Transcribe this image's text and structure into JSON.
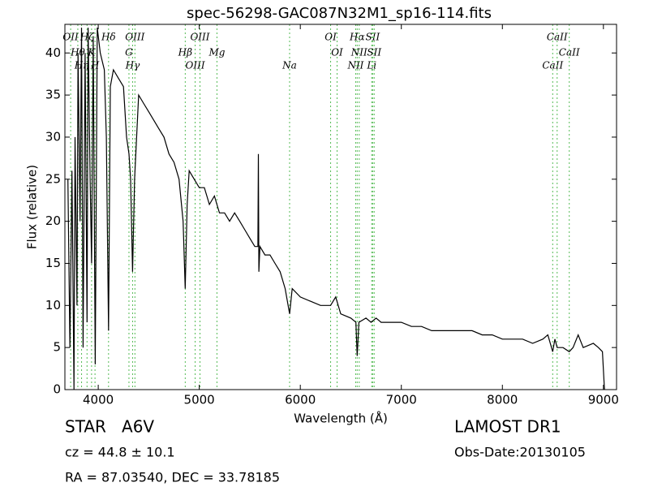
{
  "chart_data": {
    "type": "line",
    "title": "spec-56298-GAC087N32M1_sp16-114.fits",
    "x_label": "Wavelength (Å)",
    "y_label": "Flux (relative)",
    "xlim": [
      3670,
      9130
    ],
    "ylim": [
      0,
      43.4
    ],
    "xticks": [
      4000,
      5000,
      6000,
      7000,
      8000,
      9000
    ],
    "yticks": [
      0,
      5,
      10,
      15,
      20,
      25,
      30,
      35,
      40
    ],
    "series": [
      {
        "name": "spectrum",
        "color": "#000000",
        "x": [
          3700,
          3720,
          3740,
          3760,
          3770,
          3790,
          3800,
          3820,
          3835,
          3850,
          3870,
          3889,
          3900,
          3920,
          3934,
          3950,
          3970,
          3990,
          4020,
          4060,
          4080,
          4102,
          4120,
          4150,
          4200,
          4250,
          4280,
          4304,
          4320,
          4340,
          4360,
          4400,
          4450,
          4500,
          4550,
          4600,
          4650,
          4700,
          4750,
          4800,
          4840,
          4861,
          4880,
          4900,
          4950,
          5000,
          5050,
          5100,
          5150,
          5200,
          5250,
          5300,
          5350,
          5400,
          5450,
          5500,
          5550,
          5580,
          5585,
          5590,
          5600,
          5650,
          5700,
          5750,
          5800,
          5850,
          5894,
          5920,
          6000,
          6100,
          6200,
          6300,
          6350,
          6400,
          6500,
          6550,
          6563,
          6580,
          6650,
          6700,
          6750,
          6800,
          6900,
          7000,
          7100,
          7200,
          7300,
          7400,
          7500,
          7600,
          7700,
          7800,
          7900,
          8000,
          8100,
          8200,
          8300,
          8400,
          8450,
          8498,
          8520,
          8542,
          8600,
          8662,
          8700,
          8750,
          8800,
          8900,
          8950,
          8990,
          9010
        ],
        "values": [
          25,
          5,
          26,
          0,
          30,
          10,
          40,
          20,
          43,
          5,
          40,
          8,
          43,
          25,
          15,
          42,
          3,
          43,
          40,
          38,
          30,
          7,
          36,
          38,
          37,
          36,
          30,
          28,
          25,
          14,
          25,
          35,
          34,
          33,
          32,
          31,
          30,
          28,
          27,
          25,
          20,
          12,
          22,
          26,
          25,
          24,
          24,
          22,
          23,
          21,
          21,
          20,
          21,
          20,
          19,
          18,
          17,
          17,
          28,
          14,
          17,
          16,
          16,
          15,
          14,
          12,
          9,
          12,
          11,
          10.5,
          10,
          10,
          11,
          9,
          8.5,
          8,
          4,
          8,
          8.5,
          8,
          8.5,
          8,
          8,
          8,
          7.5,
          7.5,
          7,
          7,
          7,
          7,
          7,
          6.5,
          6.5,
          6,
          6,
          6,
          5.5,
          6,
          6.5,
          4.5,
          6,
          5,
          5,
          4.5,
          5,
          6.5,
          5,
          5.5,
          5,
          4.5,
          0
        ]
      }
    ],
    "spectral_lines": {
      "color": "#55bb55",
      "lines": [
        {
          "label": "OII",
          "x": 3727
        },
        {
          "label": "Hθ",
          "x": 3798
        },
        {
          "label": "Hη",
          "x": 3835
        },
        {
          "label": "Hζ",
          "x": 3889
        },
        {
          "label": "K",
          "x": 3934
        },
        {
          "label": "H",
          "x": 3968
        },
        {
          "label": "Hδ",
          "x": 4102
        },
        {
          "label": "G",
          "x": 4304
        },
        {
          "label": "Hγ",
          "x": 4340
        },
        {
          "label": "OIII",
          "x": 4363
        },
        {
          "label": "Hβ",
          "x": 4861
        },
        {
          "label": "OIII",
          "x": 4959
        },
        {
          "label": "OIII",
          "x": 5007
        },
        {
          "label": "Mg",
          "x": 5175
        },
        {
          "label": "Na",
          "x": 5894
        },
        {
          "label": "OI",
          "x": 6300
        },
        {
          "label": "OI",
          "x": 6364
        },
        {
          "label": "NII",
          "x": 6548
        },
        {
          "label": "Hα",
          "x": 6563
        },
        {
          "label": "NII",
          "x": 6583
        },
        {
          "label": "Li",
          "x": 6707
        },
        {
          "label": "SII",
          "x": 6716
        },
        {
          "label": "SII",
          "x": 6731
        },
        {
          "label": "CaII",
          "x": 8498
        },
        {
          "label": "CaII",
          "x": 8542
        },
        {
          "label": "CaII",
          "x": 8662
        }
      ]
    },
    "annotations": {
      "class": "STAR   A6V",
      "cz": "cz = 44.8 ± 10.1",
      "coords": "RA = 87.03540, DEC = 33.78185",
      "survey": "LAMOST DR1",
      "obs_date": "Obs-Date:20130105"
    }
  }
}
